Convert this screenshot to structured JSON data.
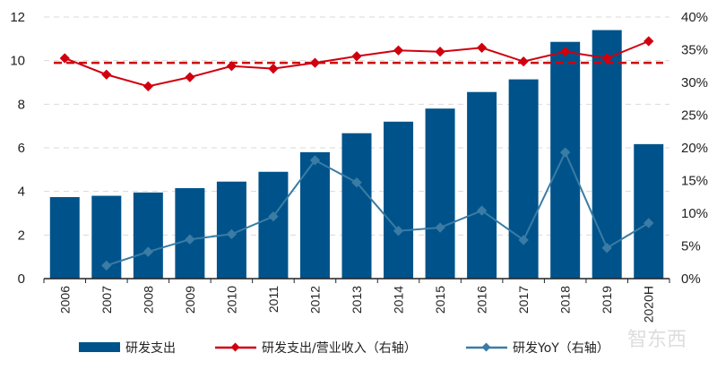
{
  "chart_data": {
    "type": "bar+line",
    "categories": [
      "2006",
      "2007",
      "2008",
      "2009",
      "2010",
      "2011",
      "2012",
      "2013",
      "2014",
      "2015",
      "2016",
      "2017",
      "2018",
      "2019",
      "2020H"
    ],
    "left_axis": {
      "ylim": [
        0,
        12
      ],
      "ticks": [
        "0",
        "2",
        "4",
        "6",
        "8",
        "10",
        "12"
      ],
      "tick_values": [
        0,
        2,
        4,
        6,
        8,
        10,
        12
      ]
    },
    "right_axis": {
      "ylim": [
        0,
        40
      ],
      "ticks": [
        "0%",
        "5%",
        "10%",
        "15%",
        "20%",
        "25%",
        "30%",
        "35%",
        "40%"
      ],
      "tick_values": [
        0,
        5,
        10,
        15,
        20,
        25,
        30,
        35,
        40
      ]
    },
    "grid": true,
    "legend_position": "bottom",
    "series": [
      {
        "name": "研发支出",
        "type": "bar",
        "axis": "left",
        "color": "#00538a",
        "values": [
          3.74,
          3.8,
          3.95,
          4.15,
          4.45,
          4.9,
          5.8,
          6.67,
          7.2,
          7.8,
          8.56,
          9.14,
          10.86,
          11.4,
          6.17
        ]
      },
      {
        "name": "研发支出/营业收入（右轴）",
        "type": "line",
        "axis": "right",
        "color": "#d0000f",
        "values": [
          33.7,
          31.2,
          29.4,
          30.8,
          32.5,
          32.1,
          33.0,
          34.0,
          34.9,
          34.7,
          35.3,
          33.2,
          34.7,
          33.7,
          36.3
        ]
      },
      {
        "name": "研发YoY（右轴）",
        "type": "line",
        "axis": "right",
        "color": "#3a7ca5",
        "values": [
          null,
          2.0,
          4.1,
          6.0,
          6.8,
          9.5,
          18.1,
          14.7,
          7.3,
          7.8,
          10.4,
          5.9,
          19.3,
          4.7,
          8.5
        ]
      }
    ],
    "reference_line": {
      "axis": "right",
      "value": 33.0,
      "color": "#d0000f",
      "style": "dashed"
    }
  },
  "legend": {
    "bar_label": "研发支出",
    "ratio_label": "研发支出/营业收入（右轴）",
    "yoy_label": "研发YoY（右轴）"
  },
  "watermark": "智东西"
}
